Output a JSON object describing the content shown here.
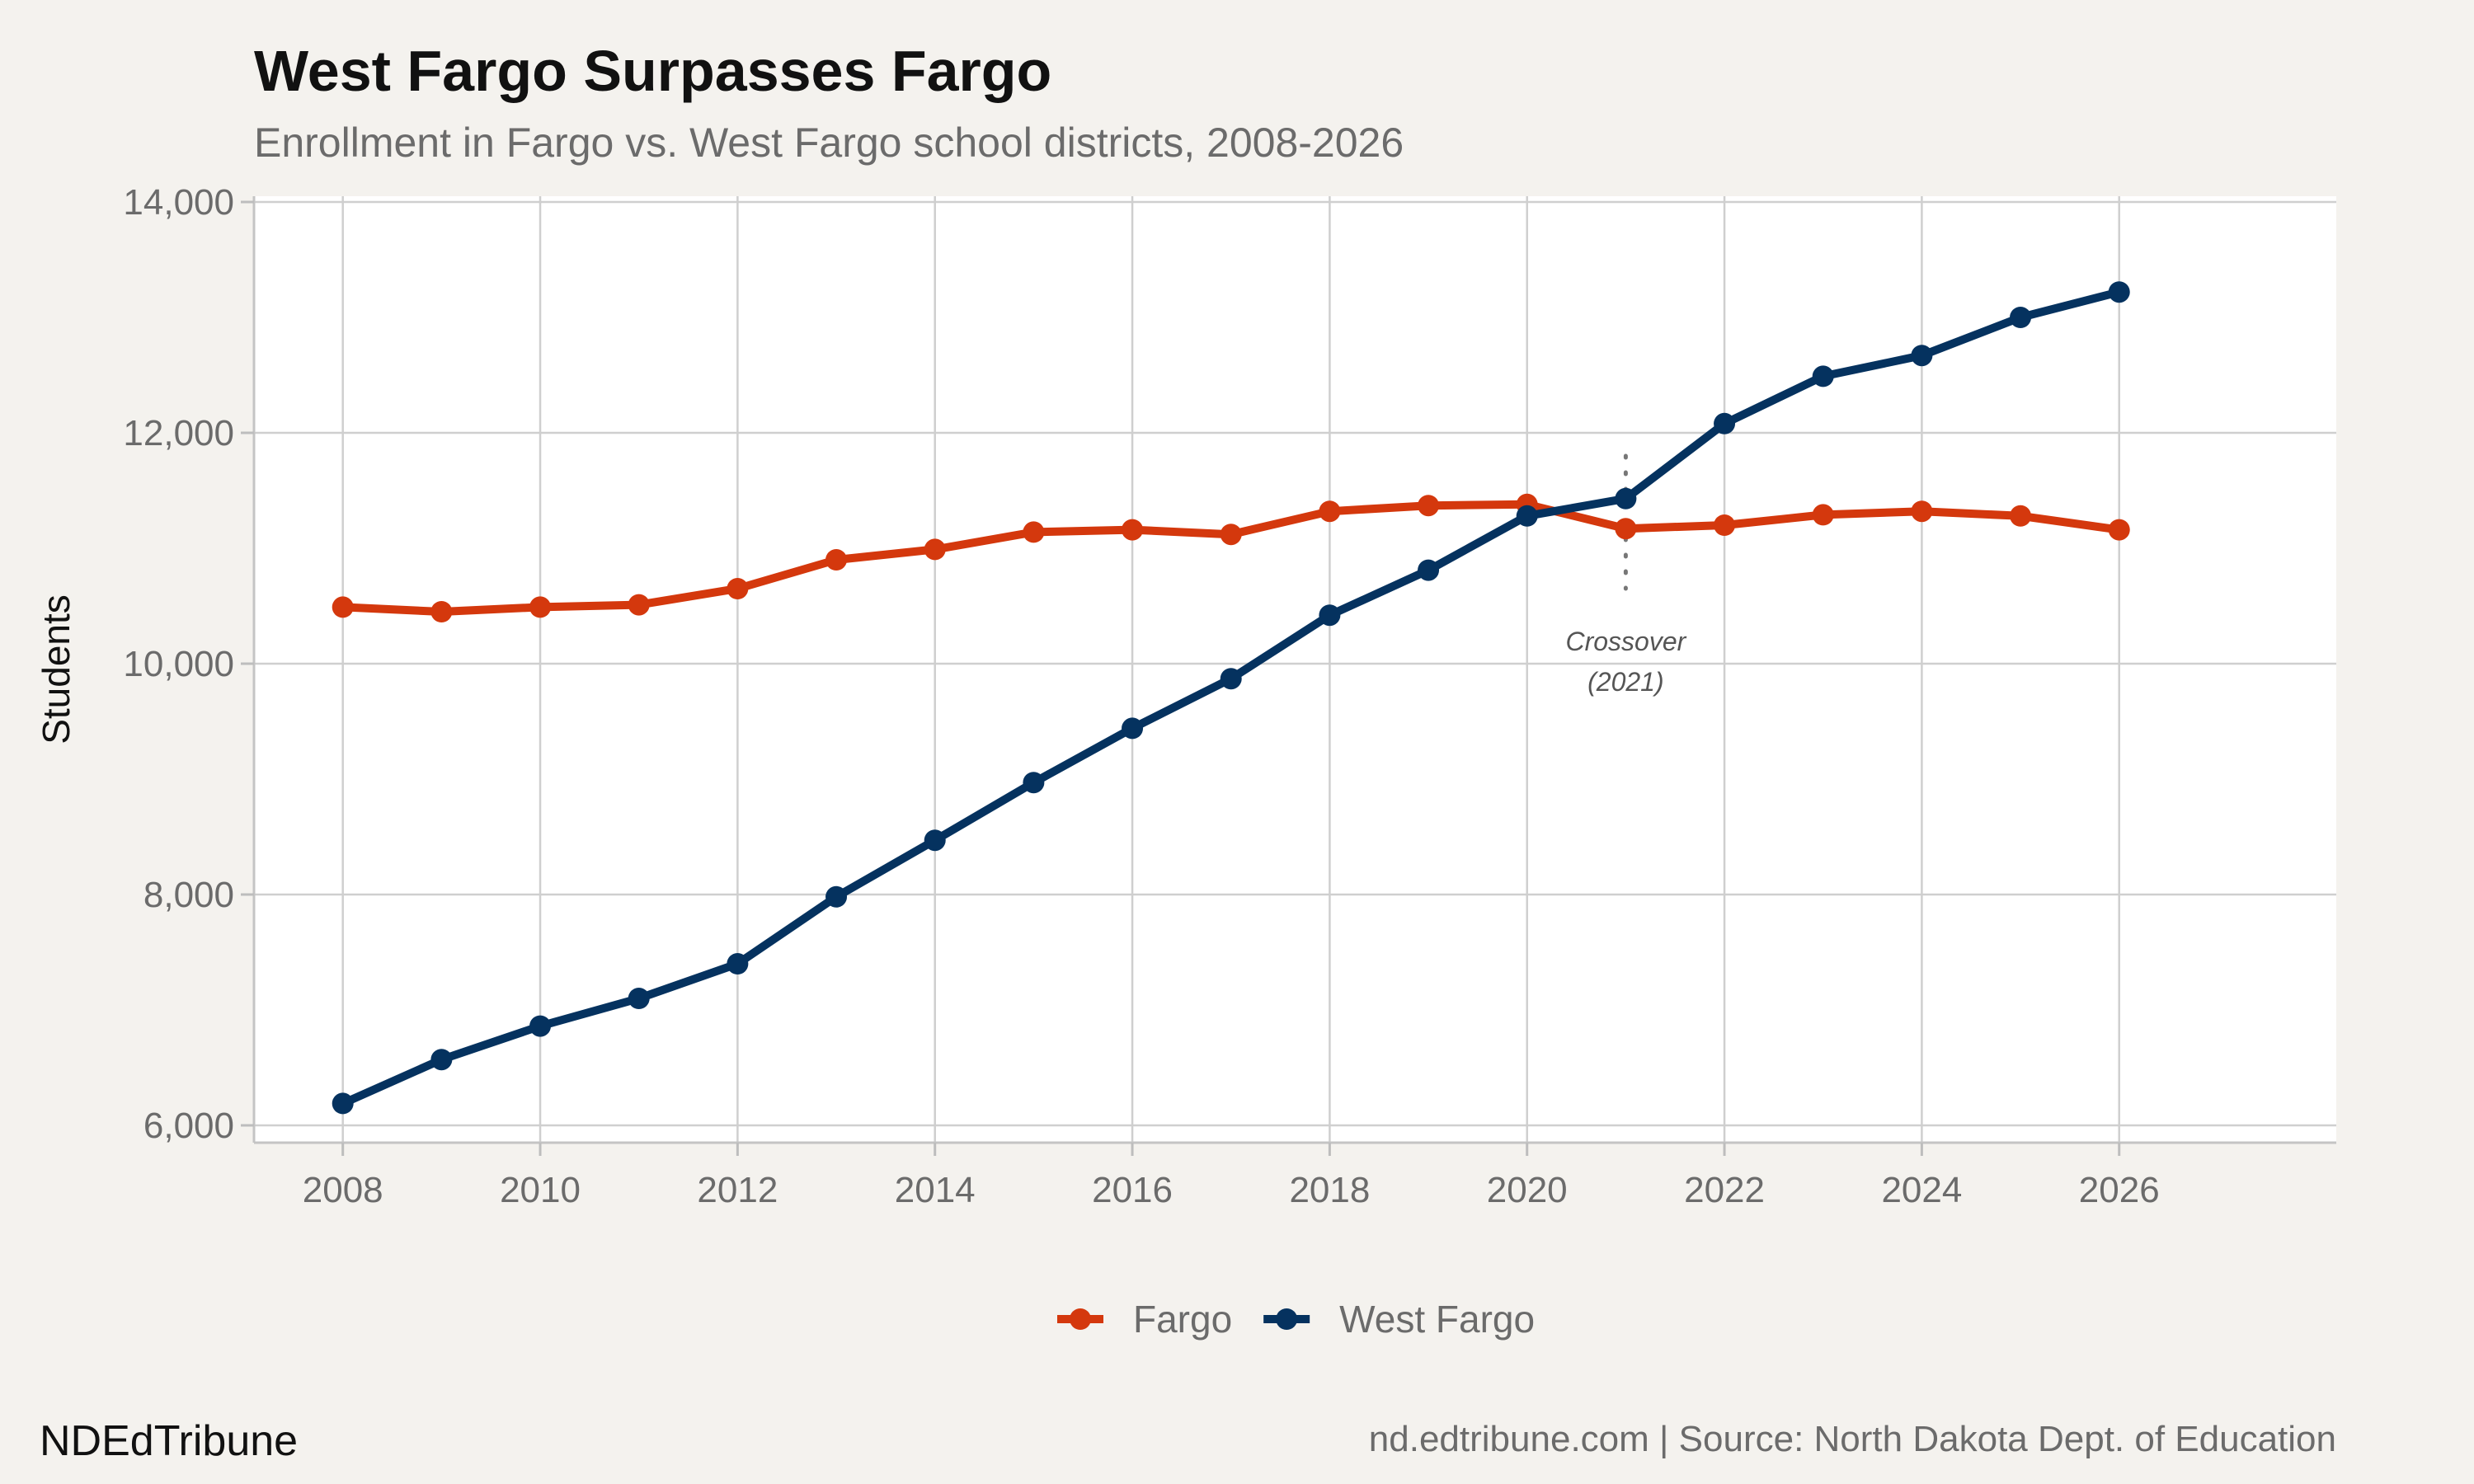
{
  "header": {
    "title": "West Fargo Surpasses Fargo",
    "subtitle": "Enrollment in Fargo vs. West Fargo school districts, 2008-2026"
  },
  "footer": {
    "brand": "NDEdTribune",
    "credit": "nd.edtribune.com | Source: North Dakota Dept. of Education"
  },
  "chart_data": {
    "type": "line",
    "title": "West Fargo Surpasses Fargo",
    "subtitle": "Enrollment in Fargo vs. West Fargo school districts, 2008-2026",
    "xlabel": "",
    "ylabel": "Students",
    "x": [
      2008,
      2009,
      2010,
      2011,
      2012,
      2013,
      2014,
      2015,
      2016,
      2017,
      2018,
      2019,
      2020,
      2021,
      2022,
      2023,
      2024,
      2025,
      2026
    ],
    "xlim": [
      2007.1,
      2028.2
    ],
    "ylim": [
      5850,
      14050
    ],
    "xticks": [
      2008,
      2010,
      2012,
      2014,
      2016,
      2018,
      2020,
      2022,
      2024,
      2026
    ],
    "xtick_labels": [
      "2008",
      "2010",
      "2012",
      "2014",
      "2016",
      "2018",
      "2020",
      "2022",
      "2024",
      "2026"
    ],
    "yticks": [
      6000,
      8000,
      10000,
      12000,
      14000
    ],
    "ytick_labels": [
      "6,000",
      "8,000",
      "10,000",
      "12,000",
      "14,000"
    ],
    "grid": true,
    "legend_position": "bottom",
    "series": [
      {
        "name": "Fargo",
        "color": "#d4380d",
        "values": [
          10490,
          10450,
          10490,
          10510,
          10650,
          10900,
          10990,
          11140,
          11160,
          11120,
          11320,
          11370,
          11380,
          11170,
          11200,
          11290,
          11320,
          11280,
          11160
        ]
      },
      {
        "name": "West Fargo",
        "color": "#05325f",
        "values": [
          6190,
          6570,
          6860,
          7100,
          7400,
          7980,
          8470,
          8970,
          9440,
          9870,
          10420,
          10810,
          11280,
          11430,
          12080,
          12490,
          12670,
          13000,
          13220
        ]
      }
    ],
    "annotation": {
      "x": 2021,
      "y_from": 10650,
      "y_to": 11800,
      "line1": "Crossover",
      "line2": "(2021)"
    }
  }
}
